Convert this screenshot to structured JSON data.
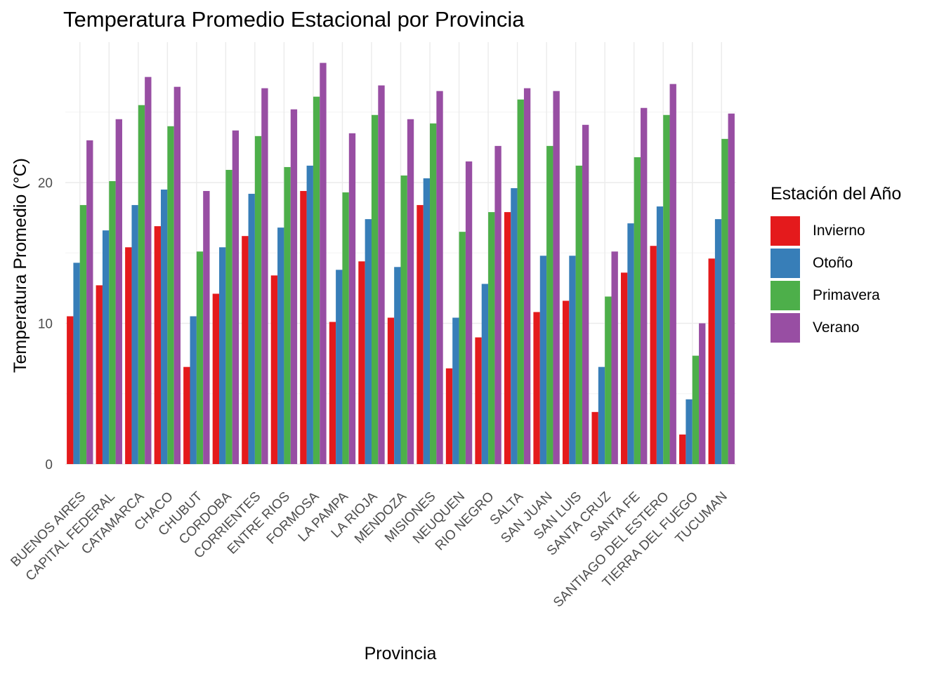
{
  "chart_data": {
    "type": "bar",
    "title": "Temperatura Promedio Estacional por Provincia",
    "xlabel": "Provincia",
    "ylabel": "Temperatura Promedio (°C)",
    "ylim": [
      0,
      30
    ],
    "yticks": [
      "0",
      "10",
      "20"
    ],
    "ytick_values": [
      0,
      10,
      20
    ],
    "grid": true,
    "legend_title": "Estación del Año",
    "legend_position": "right",
    "categories": [
      "BUENOS AIRES",
      "CAPITAL FEDERAL",
      "CATAMARCA",
      "CHACO",
      "CHUBUT",
      "CORDOBA",
      "CORRIENTES",
      "ENTRE RIOS",
      "FORMOSA",
      "LA PAMPA",
      "LA RIOJA",
      "MENDOZA",
      "MISIONES",
      "NEUQUEN",
      "RIO NEGRO",
      "SALTA",
      "SAN JUAN",
      "SAN LUIS",
      "SANTA CRUZ",
      "SANTA FE",
      "SANTIAGO DEL ESTERO",
      "TIERRA DEL FUEGO",
      "TUCUMAN"
    ],
    "series": [
      {
        "name": "Invierno",
        "color": "#e41a1c",
        "values": [
          10.5,
          12.7,
          15.4,
          16.9,
          6.9,
          12.1,
          16.2,
          13.4,
          19.4,
          10.1,
          14.4,
          10.4,
          18.4,
          6.8,
          9.0,
          17.9,
          10.8,
          11.6,
          3.7,
          13.6,
          15.5,
          2.1,
          14.6
        ]
      },
      {
        "name": "Otoño",
        "color": "#377eb8",
        "values": [
          14.3,
          16.6,
          18.4,
          19.5,
          10.5,
          15.4,
          19.2,
          16.8,
          21.2,
          13.8,
          17.4,
          14.0,
          20.3,
          10.4,
          12.8,
          19.6,
          14.8,
          14.8,
          6.9,
          17.1,
          18.3,
          4.6,
          17.4
        ]
      },
      {
        "name": "Primavera",
        "color": "#4daf4a",
        "values": [
          18.4,
          20.1,
          25.5,
          24.0,
          15.1,
          20.9,
          23.3,
          21.1,
          26.1,
          19.3,
          24.8,
          20.5,
          24.2,
          16.5,
          17.9,
          25.9,
          22.6,
          21.2,
          11.9,
          21.8,
          24.8,
          7.7,
          23.1
        ]
      },
      {
        "name": "Verano",
        "color": "#984ea3",
        "values": [
          23.0,
          24.5,
          27.5,
          26.8,
          19.4,
          23.7,
          26.7,
          25.2,
          28.5,
          23.5,
          26.9,
          24.5,
          26.5,
          21.5,
          22.6,
          26.7,
          26.5,
          24.1,
          15.1,
          25.3,
          27.0,
          10.0,
          24.9
        ]
      }
    ]
  }
}
